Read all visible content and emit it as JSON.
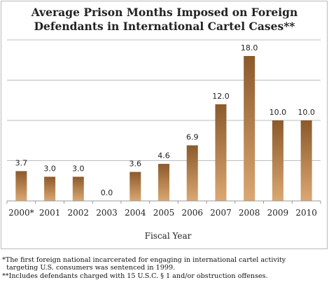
{
  "chart_data": {
    "type": "bar",
    "title_lines": [
      "Average Prison Months Imposed on Foreign",
      "Defendants in International Cartel Cases**"
    ],
    "xlabel": "Fiscal Year",
    "ylabel": "",
    "categories": [
      "2000*",
      "2001",
      "2002",
      "2003",
      "2004",
      "2005",
      "2006",
      "2007",
      "2008",
      "2009",
      "2010"
    ],
    "values": [
      3.7,
      3.0,
      3.0,
      0.0,
      3.6,
      4.6,
      6.9,
      12.0,
      18.0,
      10.0,
      10.0
    ],
    "data_labels": [
      "3.7",
      "3.0",
      "3.0",
      "0.0",
      "3.6",
      "4.6",
      "6.9",
      "12.0",
      "18.0",
      "10.0",
      "10.0"
    ],
    "ylim": [
      0,
      20
    ],
    "gridlines_at": [
      5,
      10,
      15,
      20
    ],
    "grid": true,
    "legend": "none",
    "bar_color_top": "#8b5a2b",
    "bar_color_bottom": "#dba772"
  },
  "footnotes": [
    "*The first foreign national incarcerated for engaging in international cartel activity",
    "  targeting U.S. consumers was sentenced in 1999.",
    "**Includes defendants charged with 15 U.S.C. § 1 and/or obstruction offenses."
  ]
}
